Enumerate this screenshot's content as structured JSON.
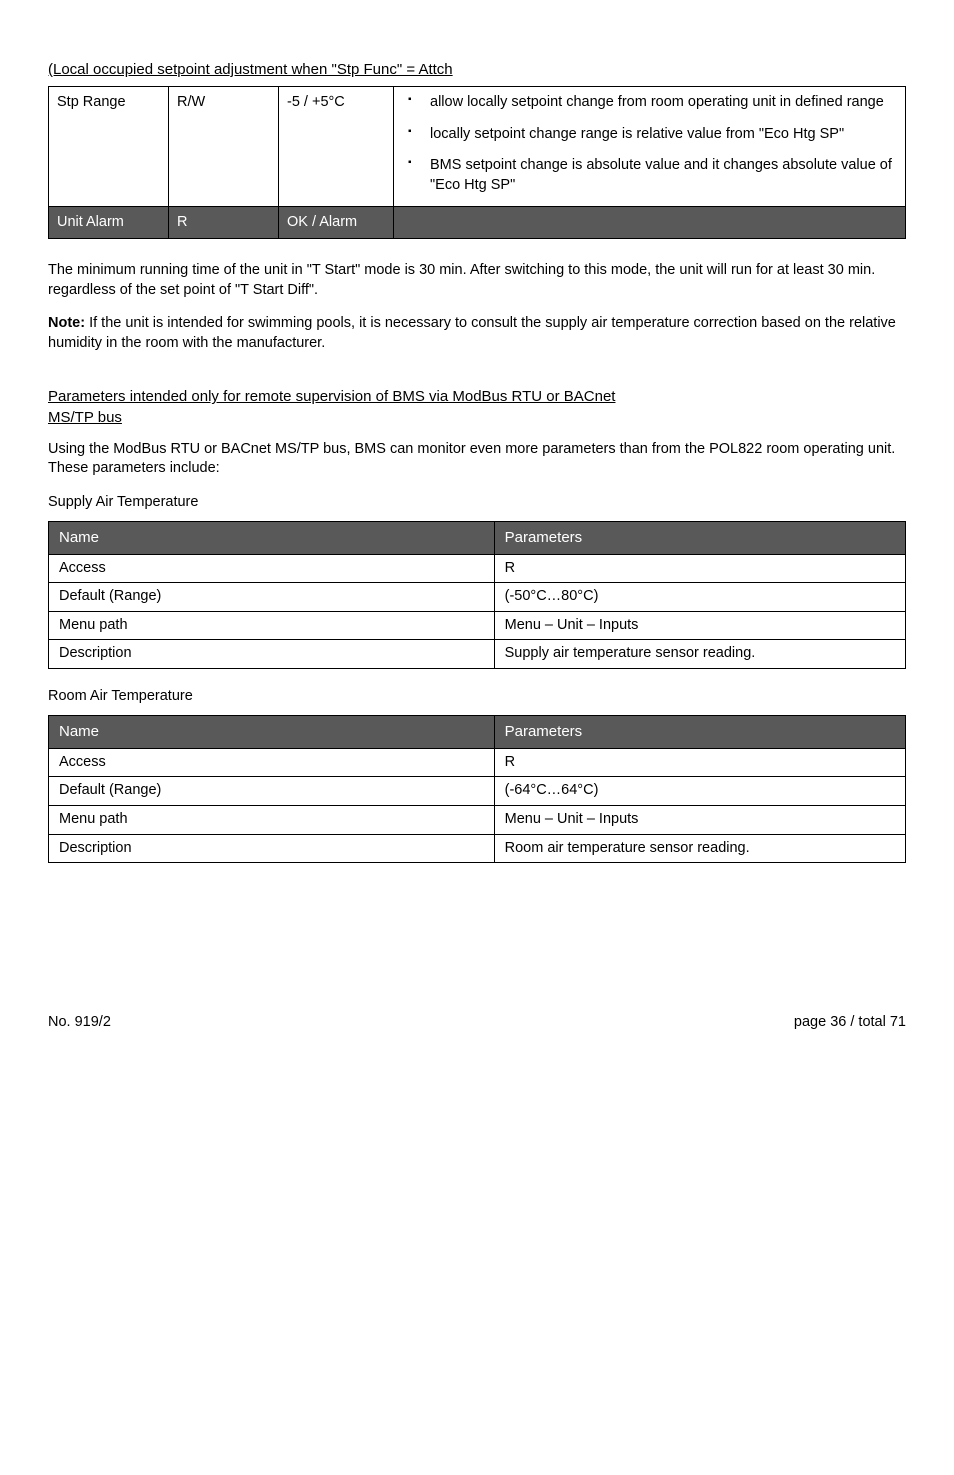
{
  "heading": "(Local occupied setpoint adjustment when \"Stp Func\" = Attch",
  "table1": {
    "rows": [
      {
        "c1": "Stp Range",
        "c2": "R/W",
        "c3": "-5 / +5°C",
        "c4_bullets": [
          "allow locally setpoint change from room operating unit in defined range",
          "locally setpoint change range is relative value from \"Eco Htg SP\"",
          "BMS setpoint change is absolute value and it changes absolute value of \"Eco Htg SP\""
        ]
      }
    ],
    "dark_row": {
      "c1": "Unit Alarm",
      "c2": "R",
      "c3": "OK / Alarm"
    }
  },
  "para1": "The minimum running time of the unit in \"T Start\" mode is 30 min. After switching to this mode, the unit will run for at least 30 min. regardless of the set point of \"T Start Diff\".",
  "note": {
    "prefix": "Note: ",
    "body": "If the unit is intended for swimming pools, it is necessary to consult the supply air temperature correction based on the relative humidity in the room with the manufacturer."
  },
  "section_title": {
    "l1": "Parameters intended only for remote supervision of BMS via ModBus RTU or BACnet",
    "l2": "MS/TP bus"
  },
  "para2": "Using the ModBus RTU or BACnet MS/TP bus, BMS can monitor even more parameters than from the POL822 room operating unit. These parameters include:",
  "kv1": {
    "title": "Supply Air Temperature",
    "header": [
      "Name",
      "Parameters"
    ],
    "rows": [
      [
        "Access",
        "R"
      ],
      [
        "Default (Range)",
        "(-50°C…80°C)"
      ],
      [
        "Menu path",
        "Menu – Unit – Inputs"
      ],
      [
        "Description",
        "Supply air temperature sensor reading."
      ]
    ]
  },
  "kv2": {
    "title": "Room Air Temperature",
    "header": [
      "Name",
      "Parameters"
    ],
    "rows": [
      [
        "Access",
        "R"
      ],
      [
        "Default (Range)",
        "(-64°C…64°C)"
      ],
      [
        "Menu path",
        "Menu – Unit – Inputs"
      ],
      [
        "Description",
        "Room air temperature sensor reading."
      ]
    ]
  },
  "footer": {
    "left": "No. 919/2",
    "right": "page 36 / total 71"
  }
}
